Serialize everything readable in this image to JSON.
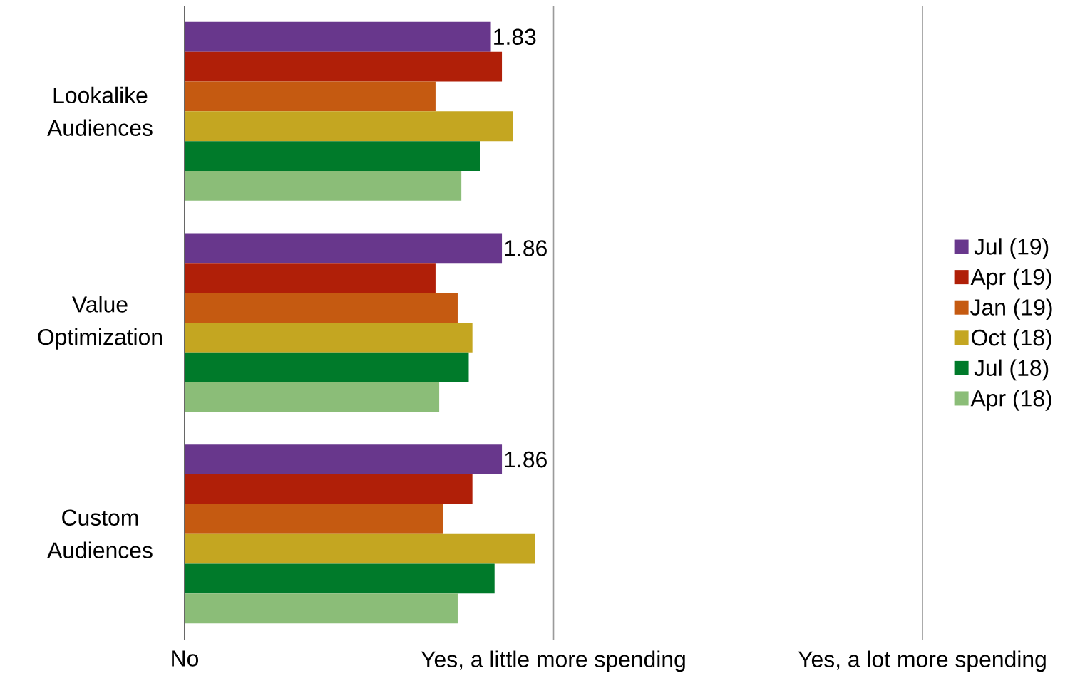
{
  "chart_data": {
    "type": "bar",
    "orientation": "horizontal",
    "categories": [
      "Lookalike Audiences",
      "Value Optimization",
      "Custom Audiences"
    ],
    "xlim": [
      1,
      3
    ],
    "annotations": [
      "No"
    ],
    "ref_lines": [
      {
        "axis": "x",
        "value": 2,
        "label": "Yes, a little more spending",
        "color": "#9a9a9a"
      },
      {
        "axis": "x",
        "value": 3,
        "label": "Yes, a lot more spending",
        "color": "#9a9a9a"
      }
    ],
    "legend": "right",
    "series": [
      {
        "name": "Jul (19)",
        "color": "#68378c",
        "values": [
          1.83,
          1.86,
          1.86
        ],
        "value_labels": [
          "1.83",
          "1.86",
          "1.86"
        ]
      },
      {
        "name": "Apr (19)",
        "color": "#b01f08",
        "values": [
          1.86,
          1.68,
          1.78
        ]
      },
      {
        "name": "Jan (19)",
        "color": "#c55a11",
        "values": [
          1.68,
          1.74,
          1.7
        ]
      },
      {
        "name": "Oct (18)",
        "color": "#c4a621",
        "values": [
          1.89,
          1.78,
          1.95
        ]
      },
      {
        "name": "Jul (18)",
        "color": "#007a2a",
        "values": [
          1.8,
          1.77,
          1.84
        ]
      },
      {
        "name": "Apr (18)",
        "color": "#8bbd78",
        "values": [
          1.75,
          1.69,
          1.74
        ]
      }
    ]
  }
}
